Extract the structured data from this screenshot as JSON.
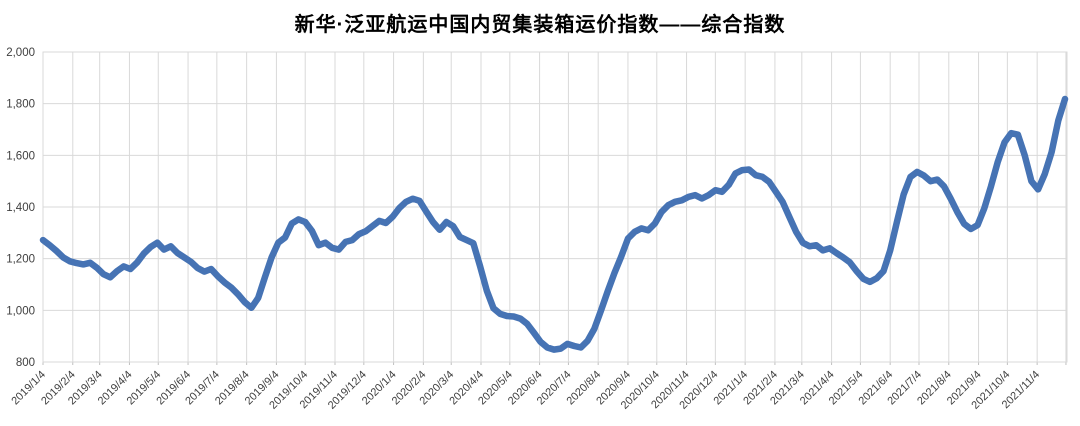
{
  "header": {
    "title": "新华·泛亚航运中国内贸集装箱运价指数——综合指数"
  },
  "chart_data": {
    "type": "line",
    "title": "新华·泛亚航运中国内贸集装箱运价指数——综合指数",
    "xlabel": "",
    "ylabel": "",
    "legend": "none",
    "grid": true,
    "ylim": [
      800,
      2000
    ],
    "y_tick_step": 200,
    "y_tick_labels": [
      "800",
      "1,000",
      "1,200",
      "1,400",
      "1,600",
      "1,800",
      "2,000"
    ],
    "x_tick_labels": [
      "2019/1/4",
      "2019/2/4",
      "2019/3/4",
      "2019/4/4",
      "2019/5/4",
      "2019/6/4",
      "2019/7/4",
      "2019/8/4",
      "2019/9/4",
      "2019/10/4",
      "2019/11/4",
      "2019/12/4",
      "2020/1/4",
      "2020/2/4",
      "2020/3/4",
      "2020/4/4",
      "2020/5/4",
      "2020/6/4",
      "2020/7/4",
      "2020/8/4",
      "2020/9/4",
      "2020/10/4",
      "2020/11/4",
      "2020/12/4",
      "2021/1/4",
      "2021/2/4",
      "2021/3/4",
      "2021/4/4",
      "2021/5/4",
      "2021/6/4",
      "2021/7/4",
      "2021/8/4",
      "2021/9/4",
      "2021/10/4",
      "2021/11/4"
    ],
    "series": [
      {
        "name": "综合指数",
        "x": [
          "2019/1/4",
          "2019/1/11",
          "2019/1/18",
          "2019/1/25",
          "2019/2/1",
          "2019/2/8",
          "2019/2/15",
          "2019/2/22",
          "2019/3/1",
          "2019/3/8",
          "2019/3/15",
          "2019/3/22",
          "2019/3/29",
          "2019/4/5",
          "2019/4/12",
          "2019/4/19",
          "2019/4/26",
          "2019/5/3",
          "2019/5/10",
          "2019/5/17",
          "2019/5/24",
          "2019/5/31",
          "2019/6/7",
          "2019/6/14",
          "2019/6/21",
          "2019/6/28",
          "2019/7/5",
          "2019/7/12",
          "2019/7/19",
          "2019/7/26",
          "2019/8/2",
          "2019/8/9",
          "2019/8/16",
          "2019/8/23",
          "2019/8/30",
          "2019/9/6",
          "2019/9/13",
          "2019/9/20",
          "2019/9/27",
          "2019/10/4",
          "2019/10/11",
          "2019/10/18",
          "2019/10/25",
          "2019/11/1",
          "2019/11/8",
          "2019/11/15",
          "2019/11/22",
          "2019/11/29",
          "2019/12/6",
          "2019/12/13",
          "2019/12/20",
          "2019/12/27",
          "2020/1/3",
          "2020/1/10",
          "2020/1/17",
          "2020/1/24",
          "2020/1/31",
          "2020/2/7",
          "2020/2/14",
          "2020/2/21",
          "2020/2/28",
          "2020/3/6",
          "2020/3/13",
          "2020/3/20",
          "2020/3/27",
          "2020/4/3",
          "2020/4/10",
          "2020/4/17",
          "2020/4/24",
          "2020/5/1",
          "2020/5/8",
          "2020/5/15",
          "2020/5/22",
          "2020/5/29",
          "2020/6/5",
          "2020/6/12",
          "2020/6/19",
          "2020/6/26",
          "2020/7/3",
          "2020/7/10",
          "2020/7/17",
          "2020/7/24",
          "2020/7/31",
          "2020/8/7",
          "2020/8/14",
          "2020/8/21",
          "2020/8/28",
          "2020/9/4",
          "2020/9/11",
          "2020/9/18",
          "2020/9/25",
          "2020/10/2",
          "2020/10/9",
          "2020/10/16",
          "2020/10/23",
          "2020/10/30",
          "2020/11/6",
          "2020/11/13",
          "2020/11/20",
          "2020/11/27",
          "2020/12/4",
          "2020/12/11",
          "2020/12/18",
          "2020/12/25",
          "2021/1/1",
          "2021/1/8",
          "2021/1/15",
          "2021/1/22",
          "2021/1/29",
          "2021/2/5",
          "2021/2/12",
          "2021/2/19",
          "2021/2/26",
          "2021/3/5",
          "2021/3/12",
          "2021/3/19",
          "2021/3/26",
          "2021/4/2",
          "2021/4/9",
          "2021/4/16",
          "2021/4/23",
          "2021/4/30",
          "2021/5/7",
          "2021/5/14",
          "2021/5/21",
          "2021/5/28",
          "2021/6/4",
          "2021/6/11",
          "2021/6/18",
          "2021/6/25",
          "2021/7/2",
          "2021/7/9",
          "2021/7/16",
          "2021/7/23",
          "2021/7/30",
          "2021/8/6",
          "2021/8/13",
          "2021/8/20",
          "2021/8/27",
          "2021/9/3",
          "2021/9/10",
          "2021/9/17",
          "2021/9/24",
          "2021/10/1",
          "2021/10/8",
          "2021/10/15",
          "2021/10/22",
          "2021/10/29",
          "2021/11/5",
          "2021/11/12",
          "2021/11/19",
          "2021/11/26",
          "2021/12/3"
        ],
        "values": [
          1272,
          1252,
          1230,
          1205,
          1190,
          1183,
          1178,
          1184,
          1165,
          1140,
          1128,
          1152,
          1170,
          1160,
          1185,
          1220,
          1245,
          1262,
          1235,
          1248,
          1222,
          1205,
          1188,
          1164,
          1150,
          1160,
          1132,
          1108,
          1088,
          1062,
          1032,
          1010,
          1048,
          1128,
          1205,
          1262,
          1282,
          1336,
          1352,
          1342,
          1308,
          1252,
          1262,
          1242,
          1235,
          1265,
          1272,
          1295,
          1306,
          1326,
          1346,
          1338,
          1362,
          1396,
          1420,
          1432,
          1424,
          1382,
          1342,
          1312,
          1342,
          1326,
          1284,
          1272,
          1260,
          1172,
          1076,
          1008,
          986,
          978,
          976,
          968,
          948,
          914,
          878,
          856,
          848,
          852,
          870,
          862,
          856,
          882,
          928,
          1000,
          1075,
          1145,
          1208,
          1278,
          1304,
          1317,
          1310,
          1336,
          1381,
          1407,
          1420,
          1426,
          1439,
          1446,
          1433,
          1446,
          1465,
          1459,
          1486,
          1530,
          1543,
          1545,
          1523,
          1517,
          1497,
          1459,
          1420,
          1362,
          1304,
          1262,
          1248,
          1252,
          1232,
          1240,
          1222,
          1205,
          1186,
          1152,
          1122,
          1110,
          1124,
          1152,
          1232,
          1342,
          1448,
          1516,
          1536,
          1522,
          1500,
          1506,
          1480,
          1432,
          1380,
          1335,
          1315,
          1330,
          1395,
          1480,
          1575,
          1650,
          1686,
          1680,
          1600,
          1500,
          1468,
          1528,
          1612,
          1735,
          1818
        ]
      }
    ],
    "colors": {
      "line": "#4673b4",
      "grid": "#d9d9d9",
      "axis_text": "#404040",
      "title_text": "#000000",
      "background": "#ffffff"
    }
  }
}
